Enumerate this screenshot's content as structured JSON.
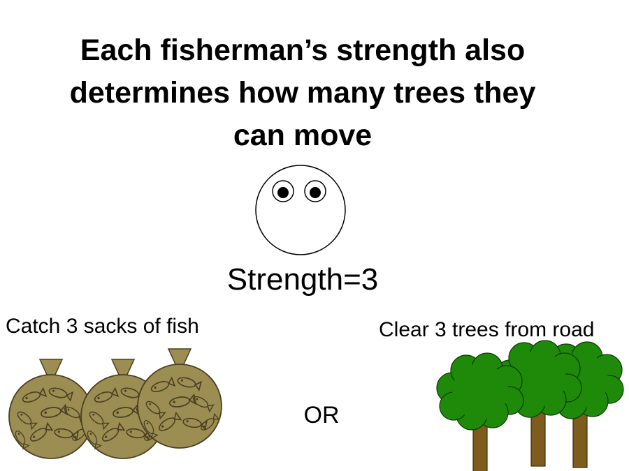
{
  "title_lines": [
    "Each fisherman’s strength also",
    "determines how many trees they",
    "can move"
  ],
  "strength_label": "Strength=3",
  "options": {
    "fish_label": "Catch 3 sacks of fish",
    "or_label": "OR",
    "trees_label": "Clear 3 trees from road"
  },
  "colors": {
    "sack_fill": "#9c8d53",
    "sack_stroke": "#4a4020",
    "tree_canopy": "#1f8a0a",
    "tree_trunk": "#7d5c1e"
  },
  "icons": {
    "fisherman": "fisherman-face-icon",
    "sack": "fish-sack-icon",
    "tree": "tree-icon"
  }
}
